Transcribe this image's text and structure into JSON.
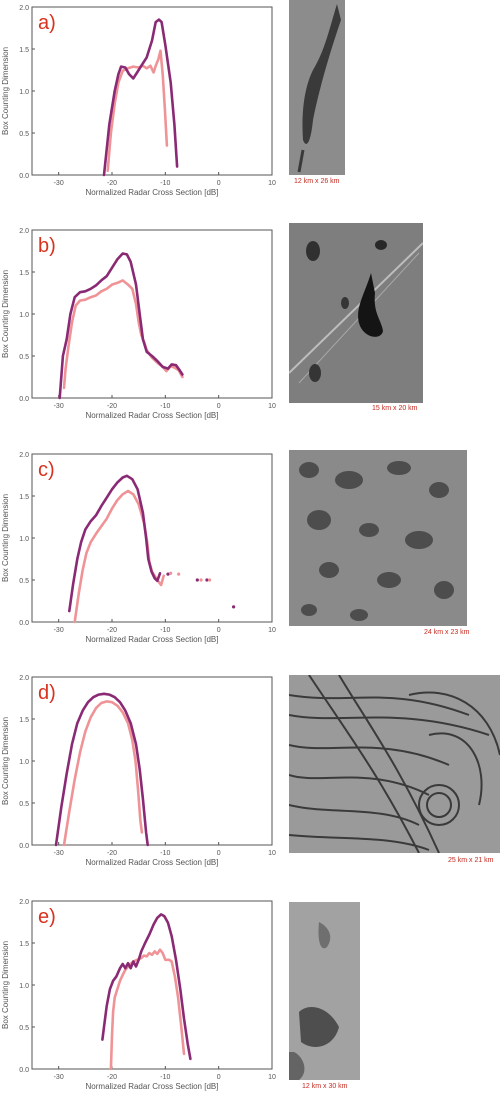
{
  "colors": {
    "dark": "#8a2a74",
    "light": "#ef9397",
    "letter": "#d7331f",
    "scale": "#c42a20"
  },
  "chart_data": [
    {
      "type": "line",
      "panel_label": "a)",
      "xlabel": "Normalized Radar Cross Section [dB]",
      "ylabel": "Box Counting Dimension",
      "xlim": [
        -35,
        10
      ],
      "ylim": [
        0,
        2
      ],
      "xticks": [
        "-30",
        "-20",
        "-10",
        "0",
        "10"
      ],
      "yticks": [
        "0.0",
        "0.5",
        "1.0",
        "1.5",
        "2.0"
      ],
      "image_caption": "12 km x 26 km",
      "series": [
        {
          "points": [
            [
              -21.5,
              0.0
            ],
            [
              -20.5,
              0.6
            ],
            [
              -19.5,
              1.0
            ],
            [
              -18.8,
              1.2
            ],
            [
              -18.3,
              1.29
            ],
            [
              -17.5,
              1.28
            ],
            [
              -16.8,
              1.2
            ],
            [
              -16,
              1.15
            ],
            [
              -15.3,
              1.22
            ],
            [
              -14.5,
              1.3
            ],
            [
              -13.5,
              1.4
            ],
            [
              -12.5,
              1.6
            ],
            [
              -11.8,
              1.82
            ],
            [
              -11.2,
              1.85
            ],
            [
              -10.7,
              1.82
            ],
            [
              -10,
              1.55
            ],
            [
              -9,
              1.1
            ],
            [
              -8.3,
              0.6
            ],
            [
              -7.8,
              0.1
            ]
          ]
        },
        {
          "points": [
            [
              -20.8,
              0.05
            ],
            [
              -20.2,
              0.5
            ],
            [
              -19.5,
              0.85
            ],
            [
              -18.8,
              1.1
            ],
            [
              -18,
              1.24
            ],
            [
              -17,
              1.27
            ],
            [
              -16,
              1.29
            ],
            [
              -15,
              1.28
            ],
            [
              -14.2,
              1.3
            ],
            [
              -13.5,
              1.27
            ],
            [
              -12.8,
              1.3
            ],
            [
              -12.2,
              1.22
            ],
            [
              -11.8,
              1.3
            ],
            [
              -11.3,
              1.38
            ],
            [
              -10.9,
              1.48
            ],
            [
              -10.5,
              1.2
            ],
            [
              -10.1,
              0.8
            ],
            [
              -9.7,
              0.35
            ]
          ]
        }
      ]
    },
    {
      "type": "line",
      "panel_label": "b)",
      "xlabel": "Normalized Radar Cross Section [dB]",
      "ylabel": "Box Counting Dimension",
      "xlim": [
        -35,
        10
      ],
      "ylim": [
        0,
        2
      ],
      "xticks": [
        "-30",
        "-20",
        "-10",
        "0",
        "10"
      ],
      "yticks": [
        "0.0",
        "0.5",
        "1.0",
        "1.5",
        "2.0"
      ],
      "image_caption": "15 km x 20 km",
      "series": [
        {
          "points": [
            [
              -29.8,
              0.0
            ],
            [
              -29.2,
              0.5
            ],
            [
              -28.5,
              0.7
            ],
            [
              -27.8,
              1.0
            ],
            [
              -27,
              1.2
            ],
            [
              -26,
              1.26
            ],
            [
              -25,
              1.27
            ],
            [
              -24,
              1.3
            ],
            [
              -23,
              1.34
            ],
            [
              -22,
              1.4
            ],
            [
              -21,
              1.45
            ],
            [
              -20,
              1.55
            ],
            [
              -19,
              1.65
            ],
            [
              -18,
              1.72
            ],
            [
              -17.2,
              1.71
            ],
            [
              -16.5,
              1.62
            ],
            [
              -15.5,
              1.35
            ],
            [
              -14.8,
              1.0
            ],
            [
              -14.2,
              0.7
            ],
            [
              -13.5,
              0.55
            ],
            [
              -12.5,
              0.5
            ],
            [
              -11.5,
              0.44
            ],
            [
              -10.5,
              0.37
            ],
            [
              -9.5,
              0.35
            ],
            [
              -8.8,
              0.4
            ],
            [
              -8,
              0.39
            ],
            [
              -7.3,
              0.33
            ],
            [
              -6.8,
              0.28
            ]
          ]
        },
        {
          "points": [
            [
              -29,
              0.12
            ],
            [
              -28.7,
              0.35
            ],
            [
              -28.2,
              0.6
            ],
            [
              -27.5,
              0.9
            ],
            [
              -26.8,
              1.1
            ],
            [
              -26,
              1.16
            ],
            [
              -25,
              1.17
            ],
            [
              -24,
              1.2
            ],
            [
              -23,
              1.22
            ],
            [
              -22,
              1.27
            ],
            [
              -21,
              1.3
            ],
            [
              -20,
              1.35
            ],
            [
              -19,
              1.37
            ],
            [
              -18,
              1.4
            ],
            [
              -17,
              1.35
            ],
            [
              -16.2,
              1.3
            ],
            [
              -15.5,
              1.12
            ],
            [
              -15,
              0.9
            ],
            [
              -14.5,
              0.75
            ],
            [
              -14,
              0.67
            ],
            [
              -13.5,
              0.57
            ],
            [
              -12.5,
              0.48
            ],
            [
              -11.5,
              0.42
            ],
            [
              -10.5,
              0.37
            ],
            [
              -9.8,
              0.32
            ],
            [
              -9,
              0.38
            ],
            [
              -8.2,
              0.36
            ],
            [
              -7.5,
              0.33
            ],
            [
              -6.8,
              0.25
            ]
          ]
        }
      ]
    },
    {
      "type": "line",
      "panel_label": "c)",
      "xlabel": "Normalized Radar Cross Section [dB]",
      "ylabel": "Box Counting Dimension",
      "xlim": [
        -35,
        10
      ],
      "ylim": [
        0,
        2
      ],
      "xticks": [
        "-30",
        "-20",
        "-10",
        "0",
        "10"
      ],
      "yticks": [
        "0.0",
        "0.5",
        "1.0",
        "1.5",
        "2.0"
      ],
      "image_caption": "24 km x 23 km",
      "series": [
        {
          "points": [
            [
              -28,
              0.13
            ],
            [
              -27.3,
              0.45
            ],
            [
              -26.5,
              0.75
            ],
            [
              -25.8,
              0.95
            ],
            [
              -25,
              1.1
            ],
            [
              -24,
              1.2
            ],
            [
              -23,
              1.27
            ],
            [
              -22,
              1.38
            ],
            [
              -21,
              1.48
            ],
            [
              -20,
              1.58
            ],
            [
              -19,
              1.66
            ],
            [
              -18,
              1.72
            ],
            [
              -17.2,
              1.74
            ],
            [
              -16.2,
              1.7
            ],
            [
              -15.2,
              1.58
            ],
            [
              -14.2,
              1.3
            ],
            [
              -13.6,
              1.0
            ],
            [
              -13.2,
              0.75
            ],
            [
              -12.6,
              0.6
            ],
            [
              -12,
              0.52
            ],
            [
              -11.5,
              0.49
            ],
            [
              -11,
              0.58
            ]
          ]
        },
        {
          "points": [
            [
              -27,
              0.0
            ],
            [
              -26.2,
              0.35
            ],
            [
              -25.5,
              0.62
            ],
            [
              -24.8,
              0.82
            ],
            [
              -24,
              0.95
            ],
            [
              -23,
              1.05
            ],
            [
              -22,
              1.14
            ],
            [
              -21,
              1.23
            ],
            [
              -20,
              1.35
            ],
            [
              -19,
              1.45
            ],
            [
              -18,
              1.52
            ],
            [
              -17,
              1.56
            ],
            [
              -16,
              1.52
            ],
            [
              -15,
              1.4
            ],
            [
              -14,
              1.18
            ],
            [
              -13.4,
              0.95
            ],
            [
              -13,
              0.72
            ],
            [
              -12.5,
              0.6
            ],
            [
              -12,
              0.55
            ],
            [
              -11.5,
              0.5
            ],
            [
              -10.8,
              0.44
            ],
            [
              -10.3,
              0.55
            ]
          ]
        }
      ],
      "dots": [
        {
          "x": -9.5,
          "y": 0.57,
          "series": 0
        },
        {
          "x": -9,
          "y": 0.58,
          "series": 1
        },
        {
          "x": -7.5,
          "y": 0.57,
          "series": 1
        },
        {
          "x": -4,
          "y": 0.5,
          "series": 0
        },
        {
          "x": -3.3,
          "y": 0.5,
          "series": 1
        },
        {
          "x": -2.2,
          "y": 0.5,
          "series": 0
        },
        {
          "x": -1.7,
          "y": 0.5,
          "series": 1
        },
        {
          "x": 2.8,
          "y": 0.18,
          "series": 0
        }
      ]
    },
    {
      "type": "line",
      "panel_label": "d)",
      "xlabel": "Normalized Radar Cross Section [dB]",
      "ylabel": "Box Counting Dimension",
      "xlim": [
        -35,
        10
      ],
      "ylim": [
        0,
        2
      ],
      "xticks": [
        "-30",
        "-20",
        "-10",
        "0",
        "10"
      ],
      "yticks": [
        "0.0",
        "0.5",
        "1.0",
        "1.5",
        "2.0"
      ],
      "image_caption": "25 km x 21 km",
      "series": [
        {
          "points": [
            [
              -30.5,
              0.0
            ],
            [
              -29.5,
              0.45
            ],
            [
              -28.5,
              0.85
            ],
            [
              -27.5,
              1.2
            ],
            [
              -26.5,
              1.45
            ],
            [
              -25.5,
              1.6
            ],
            [
              -24.5,
              1.7
            ],
            [
              -23.5,
              1.76
            ],
            [
              -22.5,
              1.79
            ],
            [
              -21.5,
              1.8
            ],
            [
              -20.5,
              1.79
            ],
            [
              -19.5,
              1.76
            ],
            [
              -18.5,
              1.7
            ],
            [
              -17.5,
              1.6
            ],
            [
              -16.5,
              1.45
            ],
            [
              -15.5,
              1.2
            ],
            [
              -14.8,
              0.9
            ],
            [
              -14.2,
              0.55
            ],
            [
              -13.6,
              0.15
            ],
            [
              -13.3,
              0.0
            ]
          ]
        },
        {
          "points": [
            [
              -29,
              0.0
            ],
            [
              -28,
              0.4
            ],
            [
              -27,
              0.78
            ],
            [
              -26,
              1.1
            ],
            [
              -25,
              1.35
            ],
            [
              -24,
              1.52
            ],
            [
              -23,
              1.63
            ],
            [
              -22,
              1.69
            ],
            [
              -21,
              1.71
            ],
            [
              -20,
              1.7
            ],
            [
              -19,
              1.66
            ],
            [
              -18,
              1.58
            ],
            [
              -17,
              1.45
            ],
            [
              -16.2,
              1.25
            ],
            [
              -15.6,
              1.0
            ],
            [
              -15.1,
              0.65
            ],
            [
              -14.7,
              0.3
            ],
            [
              -14.4,
              0.15
            ]
          ]
        }
      ]
    },
    {
      "type": "line",
      "panel_label": "e)",
      "xlabel": "Normalized Radar Cross Section [dB]",
      "ylabel": "Box Counting Dimension",
      "xlim": [
        -35,
        10
      ],
      "ylim": [
        0,
        2
      ],
      "xticks": [
        "-30",
        "-20",
        "-10",
        "0",
        "10"
      ],
      "yticks": [
        "0.0",
        "0.5",
        "1.0",
        "1.5",
        "2.0"
      ],
      "image_caption": "12 km x 30 km",
      "series": [
        {
          "points": [
            [
              -21.8,
              0.35
            ],
            [
              -21.5,
              0.5
            ],
            [
              -21,
              0.75
            ],
            [
              -20.4,
              0.95
            ],
            [
              -19.8,
              1.05
            ],
            [
              -19.2,
              1.1
            ],
            [
              -18.5,
              1.2
            ],
            [
              -18,
              1.25
            ],
            [
              -17.5,
              1.2
            ],
            [
              -17,
              1.26
            ],
            [
              -16.5,
              1.2
            ],
            [
              -16,
              1.28
            ],
            [
              -15.5,
              1.22
            ],
            [
              -15,
              1.3
            ],
            [
              -14.5,
              1.4
            ],
            [
              -13.8,
              1.5
            ],
            [
              -13,
              1.6
            ],
            [
              -12.2,
              1.72
            ],
            [
              -11.5,
              1.8
            ],
            [
              -10.8,
              1.84
            ],
            [
              -10.2,
              1.82
            ],
            [
              -9.5,
              1.74
            ],
            [
              -8.8,
              1.58
            ],
            [
              -8,
              1.3
            ],
            [
              -7.2,
              0.95
            ],
            [
              -6.5,
              0.6
            ],
            [
              -5.8,
              0.3
            ],
            [
              -5.3,
              0.12
            ]
          ]
        },
        {
          "points": [
            [
              -20.2,
              0.0
            ],
            [
              -20,
              0.4
            ],
            [
              -19.8,
              0.68
            ],
            [
              -19.5,
              0.85
            ],
            [
              -19,
              0.95
            ],
            [
              -18.5,
              1.05
            ],
            [
              -18,
              1.12
            ],
            [
              -17.5,
              1.18
            ],
            [
              -17,
              1.22
            ],
            [
              -16.5,
              1.25
            ],
            [
              -16,
              1.28
            ],
            [
              -15.3,
              1.3
            ],
            [
              -14.5,
              1.32
            ],
            [
              -14,
              1.35
            ],
            [
              -13.5,
              1.34
            ],
            [
              -13,
              1.38
            ],
            [
              -12.5,
              1.36
            ],
            [
              -12,
              1.4
            ],
            [
              -11.5,
              1.37
            ],
            [
              -11,
              1.42
            ],
            [
              -10.5,
              1.38
            ],
            [
              -10,
              1.3
            ],
            [
              -9.3,
              1.3
            ],
            [
              -8.8,
              1.28
            ],
            [
              -8.2,
              1.1
            ],
            [
              -7.6,
              0.85
            ],
            [
              -7,
              0.5
            ],
            [
              -6.5,
              0.18
            ]
          ]
        }
      ]
    }
  ]
}
